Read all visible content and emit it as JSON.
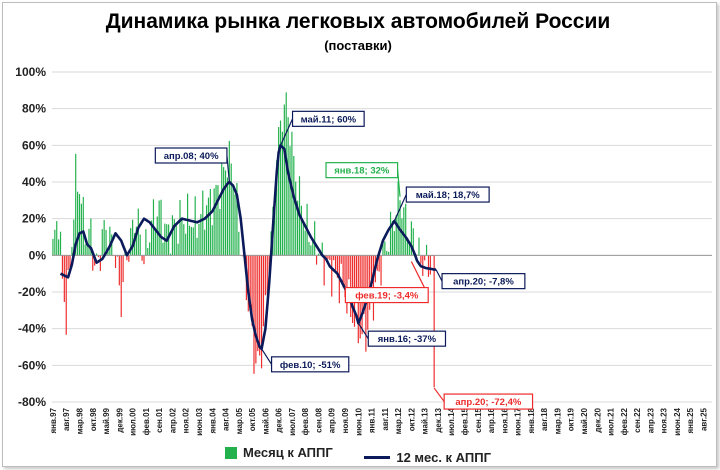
{
  "colors": {
    "bar_pos": "#22b14c",
    "bar_neg": "#ee2c2c",
    "line": "#0b1a5a",
    "grid": "#d9d9d9"
  },
  "chart_data": {
    "type": "bar",
    "title": "Динамика рынка легковых автомобилей России",
    "subtitle": "(поставки)",
    "ylim": [
      -80,
      100
    ],
    "yticks": [
      "100%",
      "80%",
      "60%",
      "40%",
      "20%",
      "0%",
      "-20%",
      "-40%",
      "-60%",
      "-80%"
    ],
    "xlabels": [
      "янв.97",
      "авг.97",
      "мар.98",
      "окт.98",
      "май.99",
      "дек.99",
      "июл.00",
      "фев.01",
      "сен.01",
      "апр.02",
      "ноя.02",
      "июн.03",
      "янв.04",
      "авг.04",
      "мар.05",
      "окт.05",
      "май.06",
      "дек.06",
      "июл.07",
      "фев.08",
      "сен.08",
      "апр.09",
      "ноя.09",
      "июн.10",
      "янв.11",
      "авг.11",
      "мар.12",
      "окт.12",
      "май.13",
      "дек.13",
      "июл.14",
      "фев.15",
      "сен.15",
      "апр.16",
      "ноя.16",
      "июн.17",
      "янв.18",
      "авг.18",
      "мар.19",
      "окт.19",
      "май.20",
      "дек.20",
      "июл.21",
      "фев.22",
      "сен.22",
      "апр.23",
      "ноя.23",
      "июн.24",
      "янв.25",
      "авг.25"
    ],
    "series": [
      {
        "name": "Месяц к АППГ",
        "type": "bar"
      },
      {
        "name": "12 мес. к АППГ",
        "type": "line"
      }
    ],
    "monthly_keypoints": [
      [
        0,
        4
      ],
      [
        3,
        22
      ],
      [
        5,
        -15
      ],
      [
        7,
        -33
      ],
      [
        9,
        -8
      ],
      [
        12,
        42
      ],
      [
        14,
        38
      ],
      [
        16,
        20
      ],
      [
        18,
        10
      ],
      [
        20,
        12
      ],
      [
        22,
        -6
      ],
      [
        24,
        -4
      ],
      [
        26,
        10
      ],
      [
        28,
        16
      ],
      [
        30,
        8
      ],
      [
        32,
        6
      ],
      [
        34,
        -10
      ],
      [
        36,
        -25
      ],
      [
        38,
        -5
      ],
      [
        40,
        5
      ],
      [
        44,
        22
      ],
      [
        48,
        -2
      ],
      [
        52,
        18
      ],
      [
        56,
        26
      ],
      [
        60,
        12
      ],
      [
        64,
        16
      ],
      [
        68,
        20
      ],
      [
        72,
        20
      ],
      [
        76,
        18
      ],
      [
        80,
        26
      ],
      [
        84,
        30
      ],
      [
        88,
        38
      ],
      [
        92,
        52
      ],
      [
        94,
        50
      ],
      [
        96,
        38
      ],
      [
        99,
        6
      ],
      [
        101,
        -8
      ],
      [
        104,
        -35
      ],
      [
        106,
        -55
      ],
      [
        108,
        -60
      ],
      [
        110,
        -52
      ],
      [
        112,
        -30
      ],
      [
        114,
        -5
      ],
      [
        116,
        20
      ],
      [
        118,
        55
      ],
      [
        121,
        78
      ],
      [
        123,
        82
      ],
      [
        125,
        70
      ],
      [
        127,
        50
      ],
      [
        130,
        32
      ],
      [
        133,
        18
      ],
      [
        136,
        10
      ],
      [
        139,
        5
      ],
      [
        142,
        -2
      ],
      [
        145,
        -6
      ],
      [
        148,
        -10
      ],
      [
        151,
        -14
      ],
      [
        154,
        -20
      ],
      [
        157,
        -30
      ],
      [
        160,
        -38
      ],
      [
        163,
        -44
      ],
      [
        166,
        -40
      ],
      [
        168,
        -28
      ],
      [
        170,
        -18
      ],
      [
        172,
        -10
      ],
      [
        174,
        0
      ],
      [
        176,
        6
      ],
      [
        178,
        14
      ],
      [
        180,
        20
      ],
      [
        182,
        30
      ],
      [
        183,
        32
      ],
      [
        185,
        24
      ],
      [
        187,
        15
      ],
      [
        190,
        10
      ],
      [
        192,
        4
      ],
      [
        194,
        -4
      ],
      [
        196,
        -3
      ],
      [
        198,
        -6
      ],
      [
        200,
        -4
      ],
      [
        201,
        -72
      ]
    ],
    "rolling_keypoints": [
      [
        4,
        -10
      ],
      [
        8,
        -12
      ],
      [
        10,
        -5
      ],
      [
        12,
        6
      ],
      [
        14,
        12
      ],
      [
        16,
        13
      ],
      [
        18,
        6
      ],
      [
        20,
        4
      ],
      [
        23,
        -4
      ],
      [
        26,
        -2
      ],
      [
        30,
        5
      ],
      [
        33,
        12
      ],
      [
        36,
        8
      ],
      [
        39,
        0
      ],
      [
        42,
        5
      ],
      [
        45,
        15
      ],
      [
        48,
        20
      ],
      [
        51,
        18
      ],
      [
        54,
        14
      ],
      [
        57,
        10
      ],
      [
        60,
        8
      ],
      [
        64,
        16
      ],
      [
        68,
        20
      ],
      [
        72,
        19
      ],
      [
        76,
        18
      ],
      [
        80,
        20
      ],
      [
        84,
        24
      ],
      [
        88,
        32
      ],
      [
        90,
        36
      ],
      [
        92,
        39
      ],
      [
        93,
        40
      ],
      [
        95,
        38
      ],
      [
        97,
        33
      ],
      [
        99,
        20
      ],
      [
        101,
        0
      ],
      [
        103,
        -20
      ],
      [
        105,
        -35
      ],
      [
        107,
        -44
      ],
      [
        109,
        -50
      ],
      [
        110,
        -51
      ],
      [
        112,
        -40
      ],
      [
        114,
        -15
      ],
      [
        116,
        15
      ],
      [
        118,
        45
      ],
      [
        119,
        56
      ],
      [
        120,
        60
      ],
      [
        122,
        58
      ],
      [
        124,
        45
      ],
      [
        127,
        32
      ],
      [
        130,
        22
      ],
      [
        133,
        16
      ],
      [
        136,
        10
      ],
      [
        139,
        5
      ],
      [
        142,
        0
      ],
      [
        144,
        -2
      ],
      [
        146,
        -6
      ],
      [
        148,
        -8
      ],
      [
        150,
        -10
      ],
      [
        152,
        -14
      ],
      [
        154,
        -18
      ],
      [
        156,
        -22
      ],
      [
        158,
        -28
      ],
      [
        160,
        -33
      ],
      [
        161,
        -37
      ],
      [
        163,
        -32
      ],
      [
        165,
        -26
      ],
      [
        168,
        -15
      ],
      [
        171,
        -2
      ],
      [
        174,
        8
      ],
      [
        177,
        14
      ],
      [
        179,
        17
      ],
      [
        180,
        18.7
      ],
      [
        183,
        14
      ],
      [
        186,
        10
      ],
      [
        189,
        5
      ],
      [
        191,
        0
      ],
      [
        192,
        -3
      ],
      [
        194,
        -6
      ],
      [
        197,
        -7
      ],
      [
        200,
        -7.5
      ],
      [
        201,
        -7.8
      ],
      [
        202,
        -7.8
      ]
    ],
    "annotations": [
      {
        "text": "апр.08; 40%",
        "m": 93,
        "v": 40,
        "style": "navy",
        "at": "left-above"
      },
      {
        "text": "май.11; 60%",
        "m": 120,
        "v": 60,
        "style": "navy",
        "at": "right-above"
      },
      {
        "text": "фев.10; -51%",
        "m": 110,
        "v": -51,
        "style": "navy",
        "at": "right-below"
      },
      {
        "text": "янв.16; -37%",
        "m": 161,
        "v": -37,
        "style": "navy",
        "at": "right-below"
      },
      {
        "text": "янв.18; 32%",
        "m": 183,
        "v": 32,
        "style": "green",
        "at": "left-above"
      },
      {
        "text": "май.18; 18,7%",
        "m": 180,
        "v": 18.7,
        "style": "navy",
        "at": "right-above"
      },
      {
        "text": "фев.19; -3,4%",
        "m": 189,
        "v": -3.4,
        "style": "red",
        "at": "left-below"
      },
      {
        "text": "апр.20; -7,8%",
        "m": 202,
        "v": -7.8,
        "style": "navy",
        "at": "right-below2"
      },
      {
        "text": "апр.20; -72,4%",
        "m": 201,
        "v": -72.4,
        "style": "red",
        "at": "right-near"
      }
    ]
  }
}
